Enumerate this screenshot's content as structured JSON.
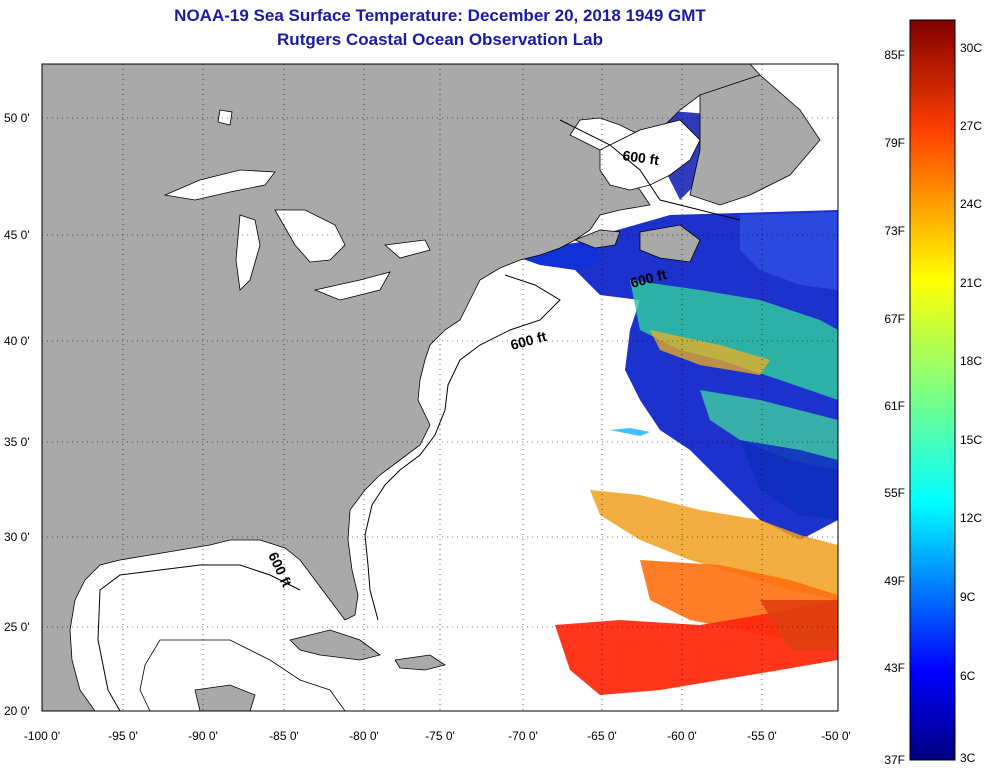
{
  "title_line1": "NOAA-19 Sea Surface Temperature:  December 20, 2018 1949 GMT",
  "title_line2": "Rutgers Coastal Ocean Observation Lab",
  "longitude_ticks": [
    "-100 0'",
    "-95 0'",
    "-90 0'",
    "-85 0'",
    "-80 0'",
    "-75 0'",
    "-70 0'",
    "-65 0'",
    "-60 0'",
    "-55 0'",
    "-50 0'"
  ],
  "latitude_ticks": [
    "50 0'",
    "45 0'",
    "40 0'",
    "35 0'",
    "30 0'",
    "25 0'",
    "20 0'"
  ],
  "depth_contour_labels": [
    "600 ft",
    "600 ft",
    "600 ft",
    "600 ft"
  ],
  "colorbar": {
    "fahrenheit_ticks": [
      "85F",
      "79F",
      "73F",
      "67F",
      "61F",
      "55F",
      "49F",
      "43F",
      "37F"
    ],
    "celsius_ticks": [
      "30C",
      "27C",
      "24C",
      "21C",
      "18C",
      "15C",
      "12C",
      "9C",
      "6C",
      "3C"
    ],
    "range_celsius": [
      3,
      31
    ]
  },
  "map_extent": {
    "lon": [
      -100,
      -50
    ],
    "lat": [
      20,
      52
    ]
  },
  "colors": {
    "title": "#1a1aa6",
    "land": "#a9a9a9",
    "no_data": "#ffffff",
    "cold": "#000080",
    "warm": "#800000"
  }
}
